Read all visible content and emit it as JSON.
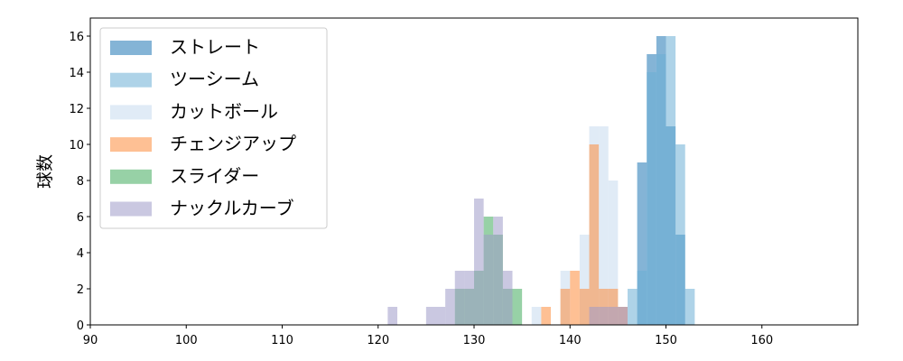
{
  "chart_data": {
    "type": "histogram",
    "ylabel": "球数",
    "xlim": [
      90,
      170
    ],
    "ylim": [
      0,
      17
    ],
    "x_ticks": [
      90,
      100,
      110,
      120,
      130,
      140,
      150,
      160
    ],
    "y_ticks": [
      0,
      2,
      4,
      6,
      8,
      10,
      12,
      14,
      16
    ],
    "bin_width": 1,
    "grid": false,
    "legend_position": "top-left",
    "series": [
      {
        "name": "ストレート",
        "color": "#1f77b4",
        "bins": [
          [
            147,
            9
          ],
          [
            148,
            15
          ],
          [
            149,
            16
          ],
          [
            150,
            11
          ],
          [
            151,
            5
          ]
        ]
      },
      {
        "name": "ツーシーム",
        "color": "#6baed6",
        "bins": [
          [
            146,
            2
          ],
          [
            147,
            3
          ],
          [
            148,
            14
          ],
          [
            149,
            15
          ],
          [
            150,
            16
          ],
          [
            151,
            10
          ],
          [
            152,
            2
          ]
        ]
      },
      {
        "name": "カットボール",
        "color": "#c6dbef",
        "bins": [
          [
            136,
            1
          ],
          [
            139,
            3
          ],
          [
            141,
            5
          ],
          [
            142,
            11
          ],
          [
            143,
            11
          ],
          [
            144,
            8
          ],
          [
            145,
            1
          ]
        ]
      },
      {
        "name": "チェンジアップ",
        "color": "#fd8d3c",
        "bins": [
          [
            137,
            1
          ],
          [
            139,
            2
          ],
          [
            140,
            3
          ],
          [
            141,
            2
          ],
          [
            142,
            10
          ],
          [
            143,
            2
          ],
          [
            144,
            2
          ],
          [
            145,
            1
          ]
        ]
      },
      {
        "name": "スライダー",
        "color": "#41ab5d",
        "bins": [
          [
            128,
            2
          ],
          [
            129,
            2
          ],
          [
            130,
            3
          ],
          [
            131,
            6
          ],
          [
            132,
            5
          ],
          [
            133,
            2
          ],
          [
            134,
            2
          ]
        ]
      },
      {
        "name": "ナックルカーブ",
        "color": "#9e9ac8",
        "bins": [
          [
            121,
            1
          ],
          [
            125,
            1
          ],
          [
            126,
            1
          ],
          [
            127,
            2
          ],
          [
            128,
            3
          ],
          [
            129,
            3
          ],
          [
            130,
            7
          ],
          [
            131,
            5
          ],
          [
            132,
            6
          ],
          [
            133,
            3
          ],
          [
            142,
            1
          ],
          [
            143,
            1
          ],
          [
            144,
            1
          ],
          [
            145,
            1
          ]
        ]
      }
    ]
  }
}
